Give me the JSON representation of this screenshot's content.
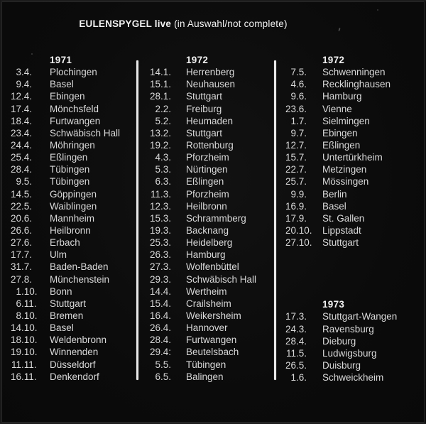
{
  "title": {
    "bold": "EULENSPYGEL live",
    "note": "(in Auswahl/not complete)"
  },
  "colors": {
    "background": "#0b0b0b",
    "text": "#d9d9d9",
    "heading": "#f2f2f2",
    "divider": "#e8e8e8"
  },
  "columns": [
    {
      "sections": [
        {
          "year": "1971",
          "rows": [
            {
              "date": "3.4.",
              "city": "Plochingen"
            },
            {
              "date": "9.4.",
              "city": "Basel"
            },
            {
              "date": "12.4.",
              "city": "Ebingen"
            },
            {
              "date": "17.4.",
              "city": "Mönchsfeld"
            },
            {
              "date": "18.4.",
              "city": "Furtwangen"
            },
            {
              "date": "23.4.",
              "city": "Schwäbisch Hall"
            },
            {
              "date": "24.4.",
              "city": "Möhringen"
            },
            {
              "date": "25.4.",
              "city": "Eßlingen"
            },
            {
              "date": "28.4.",
              "city": "Tübingen"
            },
            {
              "date": "9.5.",
              "city": "Tübingen"
            },
            {
              "date": "14.5.",
              "city": "Göppingen"
            },
            {
              "date": "22.5.",
              "city": "Waiblingen"
            },
            {
              "date": "20.6.",
              "city": "Mannheim"
            },
            {
              "date": "26.6.",
              "city": "Heilbronn"
            },
            {
              "date": "27.6.",
              "city": "Erbach"
            },
            {
              "date": "17.7.",
              "city": "Ulm"
            },
            {
              "date": "31.7.",
              "city": "Baden-Baden"
            },
            {
              "date": "27.8.",
              "city": "Münchenstein"
            },
            {
              "date": "1.10.",
              "city": "Bonn"
            },
            {
              "date": "6.11.",
              "city": "Stuttgart"
            },
            {
              "date": "8.10.",
              "city": "Bremen"
            },
            {
              "date": "14.10.",
              "city": "Basel"
            },
            {
              "date": "18.10.",
              "city": "Weldenbronn"
            },
            {
              "date": "19.10.",
              "city": "Winnenden"
            },
            {
              "date": "11.11.",
              "city": "Düsseldorf"
            },
            {
              "date": "16.11.",
              "city": "Denkendorf"
            }
          ]
        }
      ]
    },
    {
      "sections": [
        {
          "year": "1972",
          "rows": [
            {
              "date": "14.1.",
              "city": "Herrenberg"
            },
            {
              "date": "15.1.",
              "city": "Neuhausen"
            },
            {
              "date": "28.1.",
              "city": "Stuttgart"
            },
            {
              "date": "2.2.",
              "city": "Freiburg"
            },
            {
              "date": "5.2.",
              "city": "Heumaden"
            },
            {
              "date": "13.2.",
              "city": "Stuttgart"
            },
            {
              "date": "19.2.",
              "city": "Rottenburg"
            },
            {
              "date": "4.3.",
              "city": "Pforzheim"
            },
            {
              "date": "5.3.",
              "city": "Nürtingen"
            },
            {
              "date": "6.3.",
              "city": "Eßlingen"
            },
            {
              "date": "11.3.",
              "city": "Pforzheim"
            },
            {
              "date": "12.3.",
              "city": "Heilbronn"
            },
            {
              "date": "15.3.",
              "city": "Schrammberg"
            },
            {
              "date": "19.3.",
              "city": "Backnang"
            },
            {
              "date": "25.3.",
              "city": "Heidelberg"
            },
            {
              "date": "26.3.",
              "city": "Hamburg"
            },
            {
              "date": "27.3.",
              "city": "Wolfenbüttel"
            },
            {
              "date": "29.3.",
              "city": "Schwäbisch Hall"
            },
            {
              "date": "14.4.",
              "city": "Wertheim"
            },
            {
              "date": "15.4.",
              "city": "Crailsheim"
            },
            {
              "date": "16.4.",
              "city": "Weikersheim"
            },
            {
              "date": "26.4.",
              "city": "Hannover"
            },
            {
              "date": "28.4.",
              "city": "Furtwangen"
            },
            {
              "date": "29.4:",
              "city": "Beutelsbach"
            },
            {
              "date": "5.5.",
              "city": "Tübingen"
            },
            {
              "date": "6.5.",
              "city": "Balingen"
            }
          ]
        }
      ]
    },
    {
      "sections": [
        {
          "year": "1972",
          "rows": [
            {
              "date": "7.5.",
              "city": "Schwenningen"
            },
            {
              "date": "4.6.",
              "city": "Recklinghausen"
            },
            {
              "date": "9.6.",
              "city": "Hamburg"
            },
            {
              "date": "23.6.",
              "city": "Vienne"
            },
            {
              "date": "1.7.",
              "city": "Sielmingen"
            },
            {
              "date": "9.7.",
              "city": "Ebingen"
            },
            {
              "date": "12.7.",
              "city": "Eßlingen"
            },
            {
              "date": "15.7.",
              "city": "Untertürkheim"
            },
            {
              "date": "22.7.",
              "city": "Metzingen"
            },
            {
              "date": "25.7.",
              "city": "Mössingen"
            },
            {
              "date": "9.9.",
              "city": "Berlin"
            },
            {
              "date": "16.9.",
              "city": "Basel"
            },
            {
              "date": "17.9.",
              "city": "St. Gallen"
            },
            {
              "date": "20.10.",
              "city": "Lippstadt"
            },
            {
              "date": "27.10.",
              "city": "Stuttgart"
            }
          ]
        },
        {
          "year": "1973",
          "rows": [
            {
              "date": "17.3.",
              "city": "Stuttgart-Wangen"
            },
            {
              "date": "24.3.",
              "city": "Ravensburg"
            },
            {
              "date": "28.4.",
              "city": "Dieburg"
            },
            {
              "date": "11.5.",
              "city": "Ludwigsburg"
            },
            {
              "date": "26.5.",
              "city": "Duisburg"
            },
            {
              "date": "1.6.",
              "city": "Schweickheim"
            }
          ]
        }
      ]
    }
  ]
}
